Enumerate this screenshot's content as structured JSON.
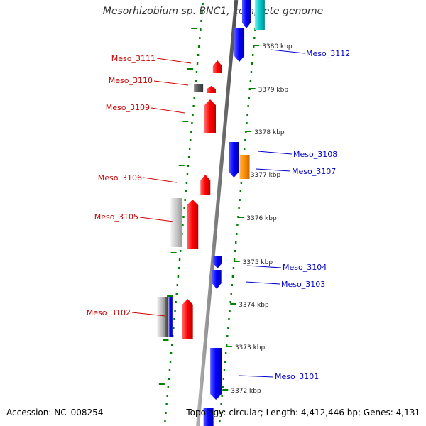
{
  "title": "Mesorhizobium sp. BNC1, complete genome",
  "footer": {
    "accession": "Accession: NC_008254",
    "topology": "Topology: circular; Length: 4,412,446 bp; Genes: 4,131"
  },
  "colors": {
    "forward_gene": "#ff0000",
    "reverse_gene": "#0000ff",
    "orange_gene": "#ff8c00",
    "cyan_gene": "#00c8c8",
    "grey_gene": "#c8c8c8",
    "dark_gene": "#555555",
    "backbone": "#8a8a8a",
    "tick": "#008000",
    "left_label": "#cc0000",
    "right_label": "#0000cc"
  },
  "scale_labels": [
    "3380 kbp",
    "3379 kbp",
    "3378 kbp",
    "3377 kbp",
    "3376 kbp",
    "3375 kbp",
    "3374 kbp",
    "3373 kbp",
    "3372 kbp"
  ],
  "left_genes": [
    "Meso_3111",
    "Meso_3110",
    "Meso_3109",
    "Meso_3106",
    "Meso_3105",
    "Meso_3102"
  ],
  "right_genes": [
    "Meso_3112",
    "Meso_3108",
    "Meso_3107",
    "Meso_3104",
    "Meso_3103",
    "Meso_3101"
  ]
}
